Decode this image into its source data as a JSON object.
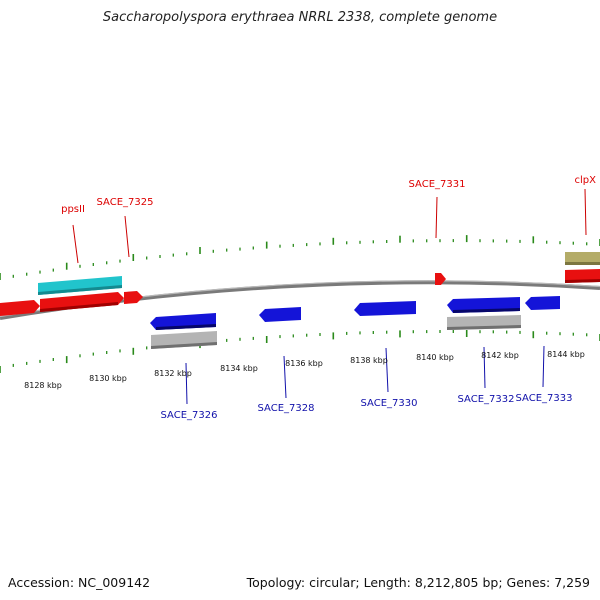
{
  "title": "Saccharopolyspora erythraea NRRL 2338, complete genome",
  "footer": {
    "accession": "Accession: NC_009142",
    "summary": "Topology: circular; Length: 8,212,805 bp; Genes: 7,259"
  },
  "colors": {
    "forward_cds": "#e00000",
    "reverse_cds": "#1010d0",
    "rna": "#20c0c8",
    "pseudo": "#b0b0b0",
    "other": "#b0a860",
    "tick": "#2a8a1a",
    "backbone": "#808080",
    "label_forward": "#d00000",
    "label_reverse": "#1010aa"
  },
  "kbp_labels": [
    "8128 kbp",
    "8130 kbp",
    "8132 kbp",
    "8134 kbp",
    "8136 kbp",
    "8138 kbp",
    "8140 kbp",
    "8142 kbp",
    "8144 kbp"
  ],
  "forward_gene_labels": [
    "ppsII",
    "SACE_7325",
    "SACE_7331",
    "clpX"
  ],
  "reverse_gene_labels": [
    "SACE_7326",
    "SACE_7328",
    "SACE_7330",
    "SACE_7332",
    "SACE_7333"
  ]
}
